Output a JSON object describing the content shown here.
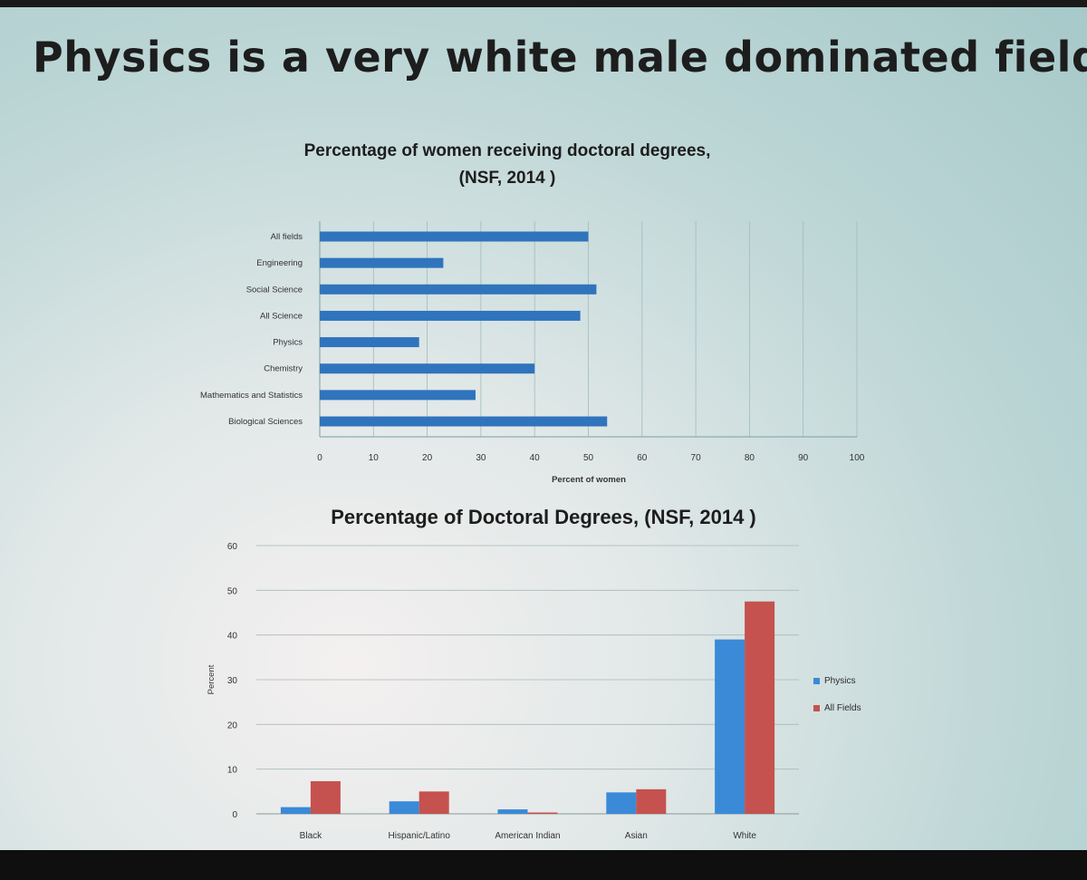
{
  "slide": {
    "title": "Physics is a very white male dominated field"
  },
  "chart_data": [
    {
      "type": "bar",
      "orientation": "horizontal",
      "title_line1": "Percentage of women receiving doctoral degrees,",
      "title_line2": "(NSF, 2014 )",
      "xlabel": "Percent of women",
      "xlim": [
        0,
        100
      ],
      "xticks": [
        "0",
        "10",
        "20",
        "30",
        "40",
        "50",
        "60",
        "70",
        "80",
        "90",
        "100"
      ],
      "categories": [
        "All fields",
        "Engineering",
        "Social Science",
        "All Science",
        "Physics",
        "Chemistry",
        "Mathematics and Statistics",
        "Biological Sciences"
      ],
      "values": [
        50,
        23,
        51.5,
        48.5,
        18.5,
        40,
        29,
        53.5
      ],
      "color": "#2f74bd"
    },
    {
      "type": "bar",
      "title": "Percentage of Doctoral Degrees, (NSF, 2014 )",
      "ylabel": "Percent",
      "ylim": [
        0,
        60
      ],
      "yticks": [
        "0",
        "10",
        "20",
        "30",
        "40",
        "50",
        "60"
      ],
      "categories": [
        "Black",
        "Hispanic/Latino",
        "American Indian",
        "Asian",
        "White"
      ],
      "series": [
        {
          "name": "Physics",
          "legend_label": "Physics",
          "color": "#3a8ad8",
          "values": [
            1.5,
            2.8,
            1.0,
            4.8,
            39
          ]
        },
        {
          "name": "All Fields",
          "legend_label": "All Fields",
          "color": "#c5524e",
          "values": [
            7.3,
            5.0,
            0.3,
            5.5,
            47.5
          ]
        }
      ]
    }
  ]
}
